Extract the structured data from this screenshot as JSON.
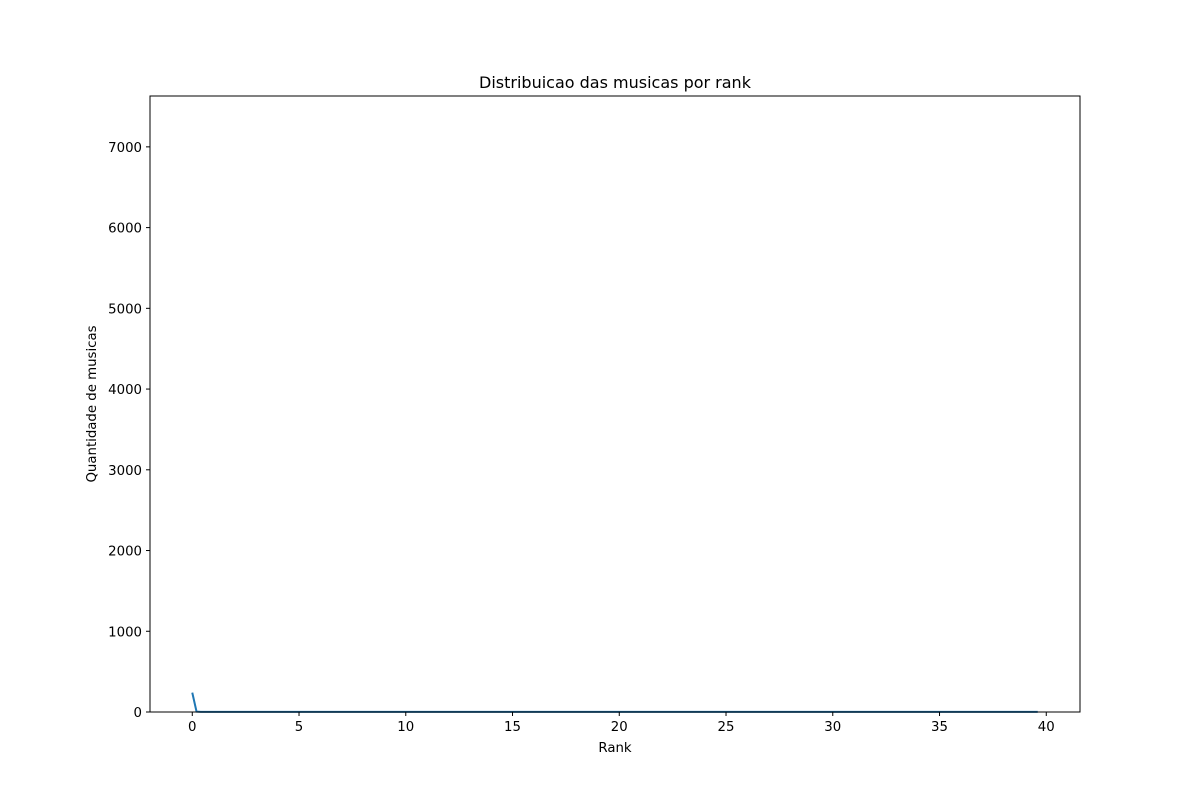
{
  "chart_data": {
    "type": "line",
    "title": "Distribuicao das musicas por rank",
    "xlabel": "Rank",
    "ylabel": "Quantidade de musicas",
    "xlim": [
      -1.98,
      41.58
    ],
    "ylim": [
      0,
      7630
    ],
    "xticks": [
      0,
      5,
      10,
      15,
      20,
      25,
      30,
      35,
      40
    ],
    "yticks": [
      0,
      1000,
      2000,
      3000,
      4000,
      5000,
      6000,
      7000
    ],
    "grid": false,
    "legend": "none",
    "series": [
      {
        "color": "#1f77b4",
        "x": [
          0,
          0.2,
          0.4,
          1,
          2,
          3,
          4,
          5,
          6,
          7,
          8,
          9,
          10,
          11,
          12,
          13,
          14,
          15,
          16,
          17,
          18,
          19,
          20,
          21,
          22,
          23,
          24,
          25,
          26,
          27,
          28,
          29,
          30,
          31,
          32,
          33,
          34,
          35,
          36,
          37,
          38,
          39,
          39.6
        ],
        "y": [
          240,
          5,
          2,
          1,
          1,
          1,
          1,
          1,
          1,
          1,
          1,
          1,
          1,
          1,
          1,
          1,
          1,
          1,
          1,
          1,
          1,
          1,
          1,
          1,
          1,
          1,
          1,
          1,
          1,
          1,
          1,
          1,
          1,
          1,
          1,
          1,
          1,
          1,
          1,
          1,
          1,
          1,
          1
        ]
      }
    ]
  }
}
